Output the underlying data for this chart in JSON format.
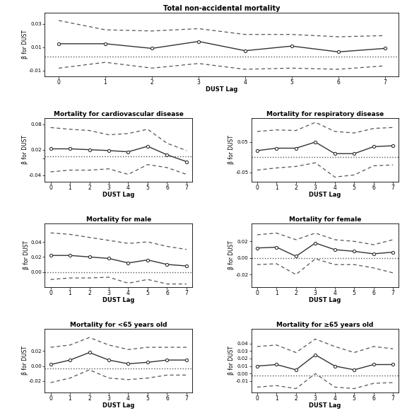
{
  "lags": [
    0,
    1,
    2,
    3,
    4,
    5,
    6,
    7
  ],
  "panels": [
    {
      "title": "Total non-accidental mortality",
      "beta": [
        0.013,
        0.013,
        0.009,
        0.015,
        0.007,
        0.011,
        0.006,
        0.009
      ],
      "ci_upper": [
        0.033,
        0.025,
        0.024,
        0.026,
        0.021,
        0.021,
        0.019,
        0.02
      ],
      "ci_lower": [
        -0.008,
        -0.003,
        -0.008,
        -0.004,
        -0.009,
        -0.008,
        -0.009,
        -0.006
      ],
      "ylim": [
        -0.015,
        0.04
      ],
      "yticks": [
        -0.01,
        0.01,
        0.03
      ],
      "ytick_labels": [
        "-0.01",
        "0.01",
        "0.03"
      ],
      "hline": 0.002
    },
    {
      "title": "Mortality for cardiovascular disease",
      "beta": [
        0.022,
        0.022,
        0.02,
        0.018,
        0.015,
        0.028,
        0.008,
        -0.008
      ],
      "ci_upper": [
        0.072,
        0.068,
        0.065,
        0.055,
        0.058,
        0.068,
        0.035,
        0.018
      ],
      "ci_lower": [
        -0.032,
        -0.028,
        -0.028,
        -0.025,
        -0.038,
        -0.015,
        -0.022,
        -0.038
      ],
      "ylim": [
        -0.055,
        0.095
      ],
      "yticks": [
        -0.04,
        0.0,
        0.02,
        0.08
      ],
      "ytick_labels": [
        "-0.04",
        "",
        "0.02",
        "0.08"
      ],
      "hline": 0.004
    },
    {
      "title": "Mortality for respiratory disease",
      "beta": [
        0.022,
        0.03,
        0.03,
        0.05,
        0.012,
        0.012,
        0.035,
        0.038
      ],
      "ci_upper": [
        0.085,
        0.09,
        0.088,
        0.115,
        0.085,
        0.08,
        0.095,
        0.098
      ],
      "ci_lower": [
        -0.042,
        -0.035,
        -0.03,
        -0.018,
        -0.065,
        -0.058,
        -0.028,
        -0.025
      ],
      "ylim": [
        -0.08,
        0.13
      ],
      "yticks": [
        -0.05,
        0.05
      ],
      "ytick_labels": [
        "-0.05",
        "0.05"
      ],
      "hline": 0.002
    },
    {
      "title": "Mortality for male",
      "beta": [
        0.022,
        0.022,
        0.02,
        0.018,
        0.012,
        0.016,
        0.01,
        0.008
      ],
      "ci_upper": [
        0.052,
        0.05,
        0.046,
        0.042,
        0.038,
        0.04,
        0.034,
        0.03
      ],
      "ci_lower": [
        -0.01,
        -0.008,
        -0.008,
        -0.007,
        -0.015,
        -0.01,
        -0.016,
        -0.016
      ],
      "ylim": [
        -0.02,
        0.065
      ],
      "yticks": [
        0.0,
        0.02,
        0.04
      ],
      "ytick_labels": [
        "0.00",
        "0.02",
        "0.04"
      ],
      "hline": 0.0
    },
    {
      "title": "Mortality for female",
      "beta": [
        0.012,
        0.013,
        0.002,
        0.018,
        0.01,
        0.008,
        0.005,
        0.007
      ],
      "ci_upper": [
        0.028,
        0.03,
        0.022,
        0.03,
        0.022,
        0.02,
        0.016,
        0.022
      ],
      "ci_lower": [
        -0.008,
        -0.007,
        -0.02,
        -0.001,
        -0.008,
        -0.008,
        -0.012,
        -0.018
      ],
      "ylim": [
        -0.035,
        0.042
      ],
      "yticks": [
        -0.02,
        0.0,
        0.02
      ],
      "ytick_labels": [
        "-0.02",
        "0.00",
        "0.02"
      ],
      "hline": 0.0
    },
    {
      "title": "Mortality for <65 years old",
      "beta": [
        0.002,
        0.008,
        0.018,
        0.008,
        0.003,
        0.005,
        0.008,
        0.008
      ],
      "ci_upper": [
        0.025,
        0.028,
        0.038,
        0.028,
        0.022,
        0.025,
        0.025,
        0.025
      ],
      "ci_lower": [
        -0.022,
        -0.016,
        -0.005,
        -0.016,
        -0.018,
        -0.016,
        -0.012,
        -0.012
      ],
      "ylim": [
        -0.035,
        0.05
      ],
      "yticks": [
        -0.02,
        0.0,
        0.02
      ],
      "ytick_labels": [
        "-0.02",
        "0.00",
        "0.02"
      ],
      "hline": -0.003
    },
    {
      "title": "Mortality for ≥65 years old",
      "beta": [
        0.01,
        0.012,
        0.005,
        0.025,
        0.01,
        0.005,
        0.012,
        0.012
      ],
      "ci_upper": [
        0.036,
        0.038,
        0.028,
        0.046,
        0.036,
        0.028,
        0.036,
        0.033
      ],
      "ci_lower": [
        -0.018,
        -0.016,
        -0.02,
        0.0,
        -0.018,
        -0.02,
        -0.013,
        -0.012
      ],
      "ylim": [
        -0.025,
        0.06
      ],
      "yticks": [
        -0.01,
        0.0,
        0.01,
        0.02,
        0.03,
        0.04
      ],
      "ytick_labels": [
        "-0.01",
        "0.00",
        "0.01",
        "0.02",
        "0.03",
        "0.04"
      ],
      "hline": -0.003
    }
  ],
  "line_color": "#333333",
  "ci_color": "#555555",
  "hline_color": "#555555",
  "bg_color": "#ffffff",
  "xlabel": "DUST Lag",
  "ylabel": "β̂ for DUST"
}
